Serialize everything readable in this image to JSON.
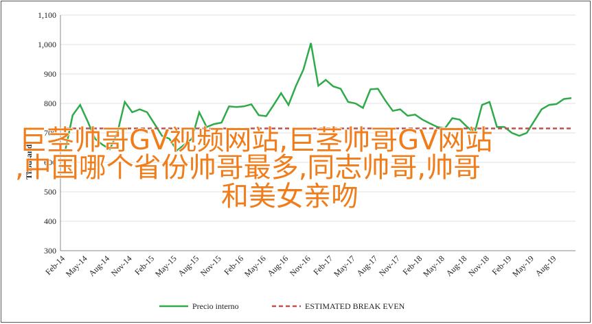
{
  "chart_data": {
    "type": "line",
    "y_label": "Thousands",
    "categories": [
      "Feb-14",
      null,
      null,
      "May-14",
      null,
      null,
      "Aug-14",
      null,
      null,
      "Nov-14",
      null,
      null,
      "Feb-15",
      null,
      null,
      "May-15",
      null,
      null,
      "Aug-15",
      null,
      null,
      "Nov-15",
      null,
      null,
      "Feb-16",
      null,
      null,
      "May-16",
      null,
      null,
      "Aug-16",
      null,
      null,
      "Nov-16",
      null,
      null,
      "Feb-17",
      null,
      null,
      "May-17",
      null,
      null,
      "Aug-17",
      null,
      null,
      "Nov-17",
      null,
      null,
      "Feb-18",
      null,
      null,
      "May-18",
      null,
      null,
      "Aug-18",
      null,
      null,
      "Nov-18",
      null,
      null,
      "Feb-19",
      null,
      null,
      "May-19",
      null,
      null,
      "Aug-19",
      null,
      null
    ],
    "series": [
      {
        "name": "Precio interno",
        "color": "#2eaa4a",
        "style": "solid",
        "values": [
          640,
          760,
          795,
          740,
          680,
          660,
          645,
          700,
          805,
          770,
          780,
          770,
          730,
          690,
          680,
          640,
          660,
          680,
          770,
          720,
          730,
          735,
          790,
          788,
          790,
          797,
          760,
          757,
          795,
          835,
          795,
          860,
          915,
          1005,
          860,
          880,
          858,
          850,
          805,
          800,
          785,
          848,
          850,
          810,
          775,
          780,
          758,
          762,
          745,
          732,
          720,
          715,
          750,
          745,
          720,
          700,
          795,
          805,
          720,
          720,
          700,
          690,
          700,
          740,
          780,
          795,
          798,
          815,
          818
        ]
      },
      {
        "name": "ESTIMATED BREAK EVEN",
        "color": "#c0504d",
        "style": "dashed",
        "values": [
          715,
          715,
          715,
          715,
          715,
          715,
          715,
          715,
          715,
          715,
          715,
          715,
          715,
          715,
          715,
          715,
          715,
          715,
          715,
          715,
          715,
          715,
          715,
          715,
          715,
          715,
          715,
          715,
          715,
          715,
          715,
          715,
          715,
          715,
          715,
          715,
          715,
          715,
          715,
          715,
          715,
          715,
          715,
          715,
          715,
          715,
          715,
          715,
          715,
          715,
          715,
          715,
          715,
          715,
          715,
          715,
          715,
          715,
          715,
          715,
          715,
          715,
          715,
          715,
          715,
          715,
          715,
          715,
          715
        ]
      }
    ],
    "ylim": [
      300,
      1100
    ],
    "yticks": [
      300,
      400,
      500,
      600,
      700,
      800,
      900,
      {
        "value": 1000,
        "label": "1,000"
      },
      {
        "value": 1100,
        "label": "1,100"
      }
    ],
    "grid": true,
    "legend": "bottom"
  },
  "overlay": [
    "巨茎帅哥GV视频网站,巨茎帅哥GV网站",
    ",中国哪个省份帅哥最多,同志帅哥,帅哥",
    "和美女亲吻"
  ]
}
